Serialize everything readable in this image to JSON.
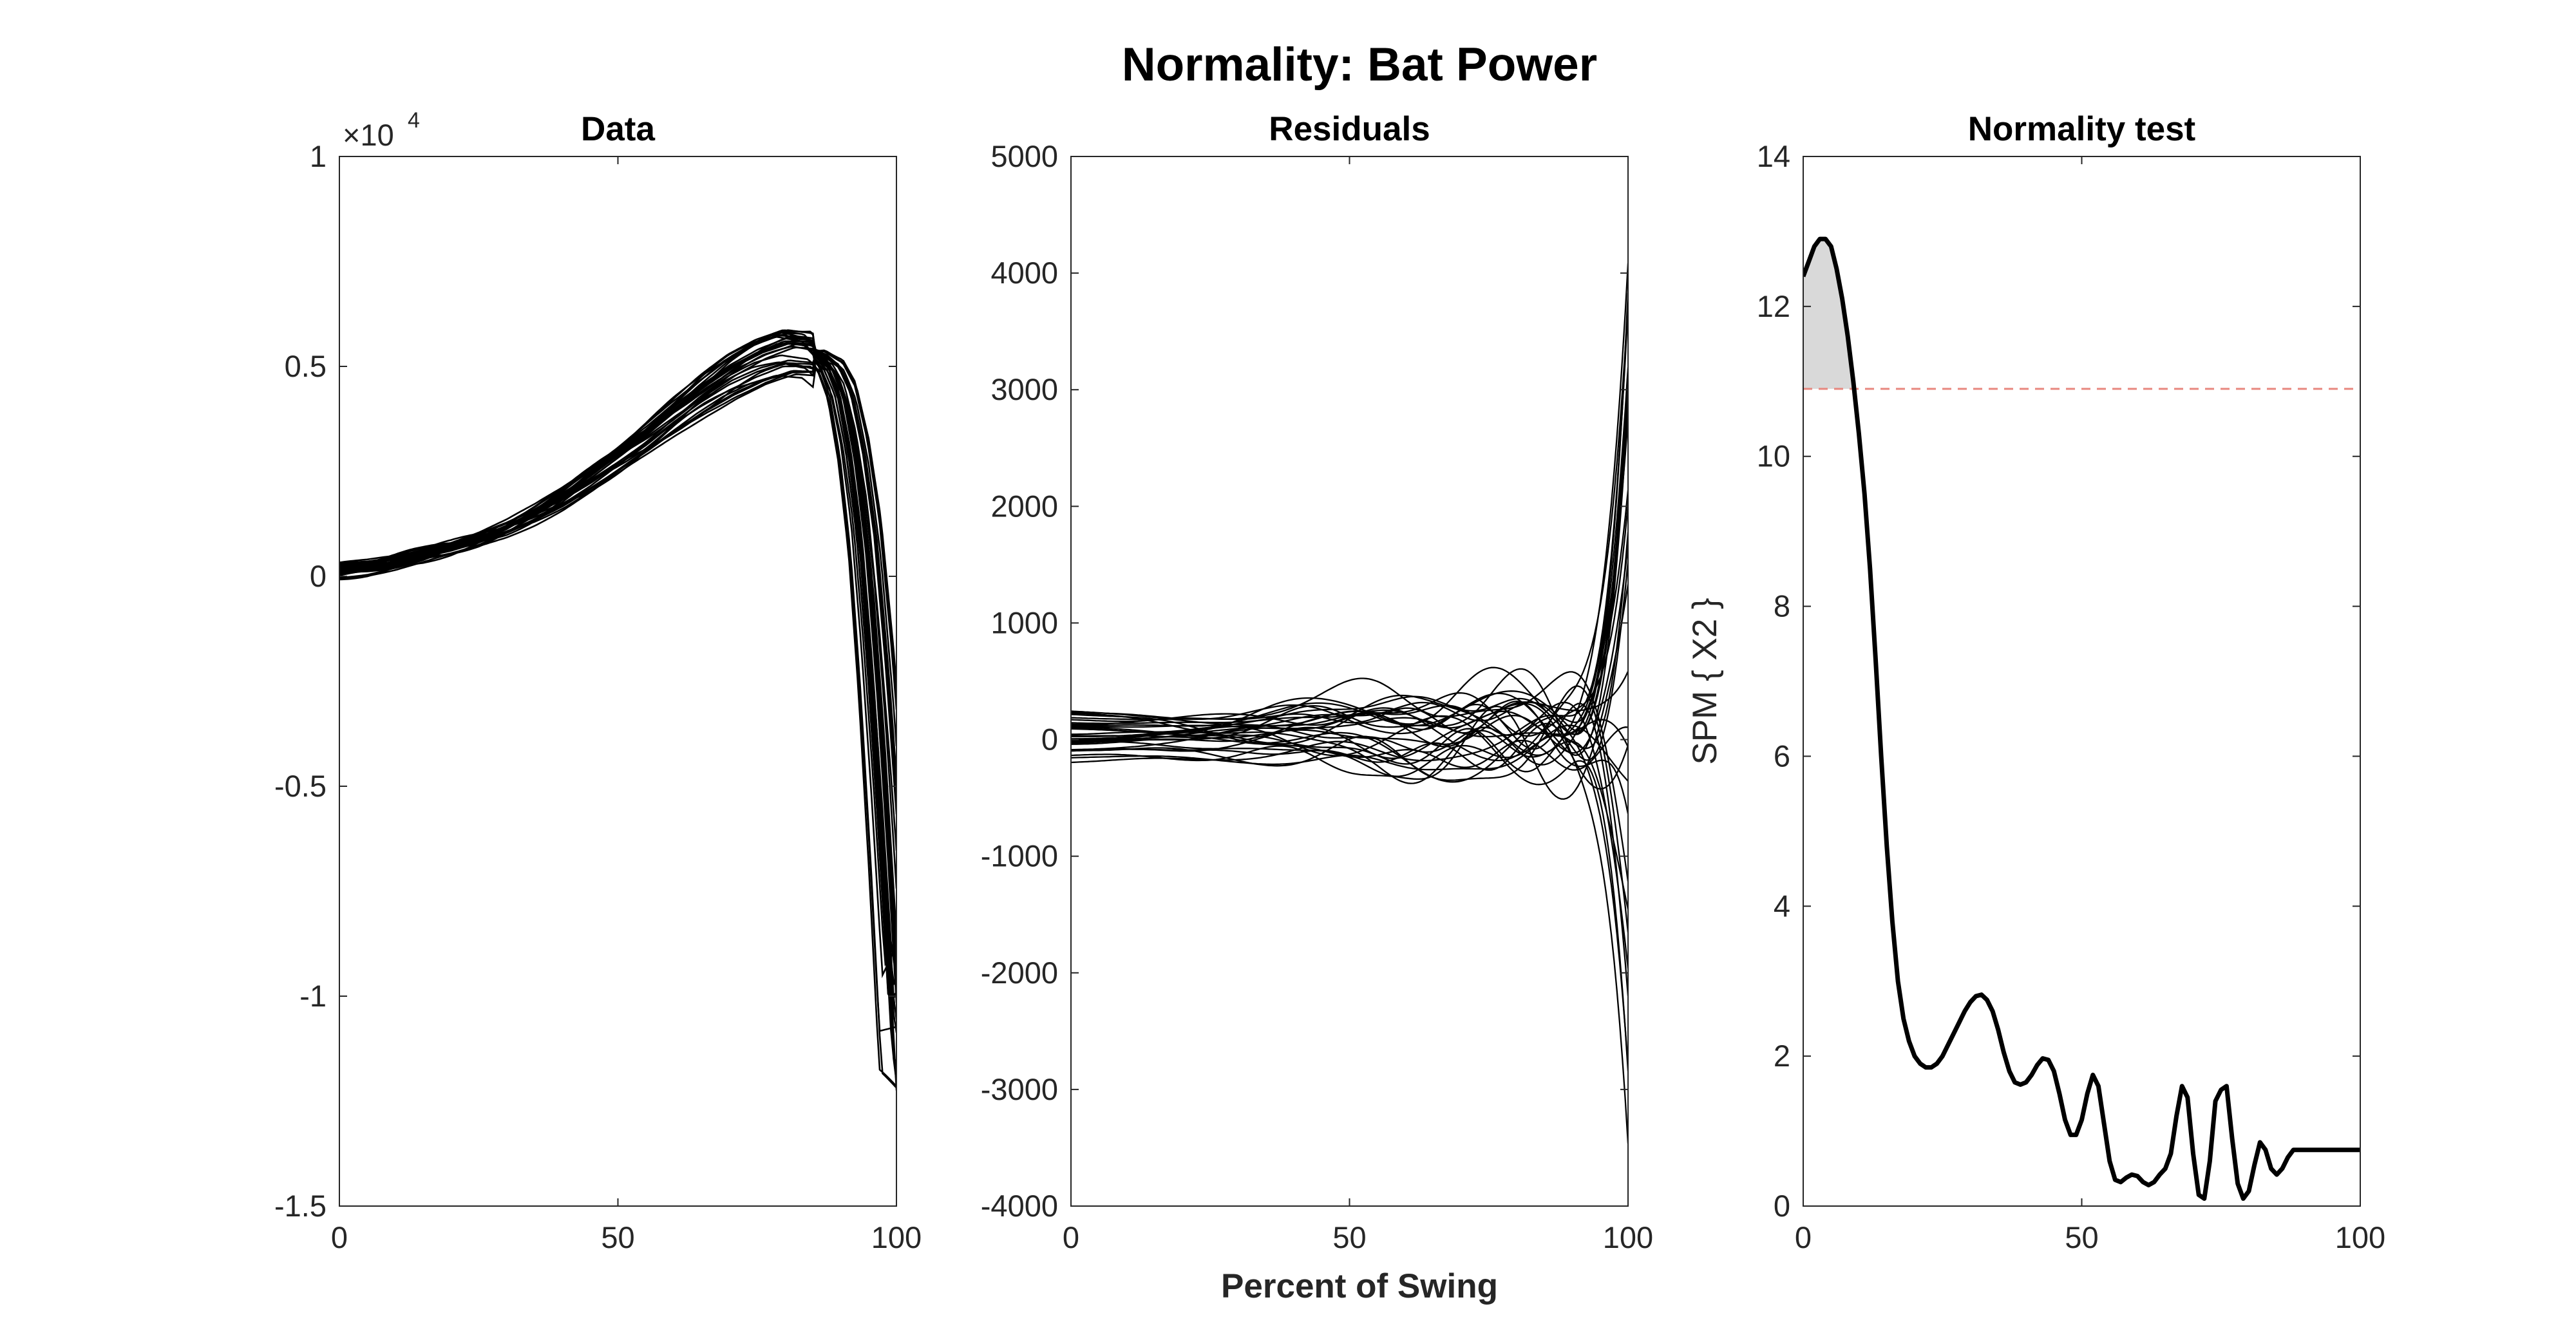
{
  "figure": {
    "title": "Normality: Bat Power",
    "xlabel": "Percent of Swing"
  },
  "chart_data": [
    {
      "type": "line",
      "title": "Data",
      "xlabel": "",
      "ylabel": "",
      "xlim": [
        0,
        100
      ],
      "ylim": [
        -15000,
        10000
      ],
      "xticks": [
        0,
        50,
        100
      ],
      "yticks": [
        -15000,
        -10000,
        -5000,
        0,
        5000,
        10000
      ],
      "ytick_labels": [
        "-1.5",
        "-1",
        "-0.5",
        "0",
        "0.5",
        "1"
      ],
      "y_exponent_label": "×10",
      "y_exponent_power": "4",
      "grid": false,
      "legend": "none",
      "series_count": 30,
      "mean_curve": {
        "x": [
          0,
          5,
          10,
          15,
          20,
          25,
          30,
          35,
          40,
          45,
          50,
          55,
          60,
          65,
          70,
          75,
          80,
          85,
          88,
          90,
          92,
          94,
          96,
          98,
          100
        ],
        "y": [
          150,
          220,
          330,
          480,
          660,
          880,
          1150,
          1480,
          1860,
          2300,
          2780,
          3280,
          3820,
          4330,
          4780,
          5120,
          5350,
          5300,
          4950,
          4300,
          2900,
          800,
          -2500,
          -6500,
          -11000
        ]
      },
      "color": "#000000"
    },
    {
      "type": "line",
      "title": "Residuals",
      "xlabel": "",
      "ylabel": "",
      "xlim": [
        0,
        100
      ],
      "ylim": [
        -4000,
        5000
      ],
      "xticks": [
        0,
        50,
        100
      ],
      "yticks": [
        -4000,
        -3000,
        -2000,
        -1000,
        0,
        1000,
        2000,
        3000,
        4000,
        5000
      ],
      "ytick_labels": [
        "-4000",
        "-3000",
        "-2000",
        "-1000",
        "0",
        "1000",
        "2000",
        "3000",
        "4000",
        "5000"
      ],
      "grid": false,
      "legend": "none",
      "series_count": 30,
      "residual_range_at_end": [
        -3600,
        4200
      ],
      "color": "#000000"
    },
    {
      "type": "line",
      "title": "Normality test",
      "xlabel": "",
      "ylabel": "SPM { X2 }",
      "xlim": [
        0,
        100
      ],
      "ylim": [
        0,
        14
      ],
      "xticks": [
        0,
        50,
        100
      ],
      "yticks": [
        0,
        2,
        4,
        6,
        8,
        10,
        12,
        14
      ],
      "ytick_labels": [
        "0",
        "2",
        "4",
        "6",
        "8",
        "10",
        "12",
        "14"
      ],
      "grid": false,
      "legend": "none",
      "threshold": 10.9,
      "threshold_color": "#e8877f",
      "suprathreshold_fill": "#d9d9d9",
      "series": [
        {
          "name": "",
          "x": [
            0,
            1,
            2,
            3,
            4,
            5,
            6,
            7,
            8,
            9,
            10,
            11,
            12,
            13,
            14,
            15,
            16,
            17,
            18,
            19,
            20,
            21,
            22,
            23,
            24,
            25,
            26,
            27,
            28,
            29,
            30,
            31,
            32,
            33,
            34,
            35,
            36,
            37,
            38,
            39,
            40,
            41,
            42,
            43,
            44,
            45,
            46,
            47,
            48,
            49,
            50,
            51,
            52,
            53,
            54,
            55,
            56,
            57,
            58,
            59,
            60,
            61,
            62,
            63,
            64,
            65,
            66,
            67,
            68,
            69,
            70,
            71,
            72,
            73,
            74,
            75,
            76,
            77,
            78,
            79,
            80,
            81,
            82,
            83,
            84,
            85,
            86,
            87,
            88,
            89,
            90,
            91,
            92,
            93,
            94,
            95,
            96,
            97,
            98,
            99,
            100
          ],
          "y": [
            12.4,
            12.6,
            12.8,
            12.9,
            12.9,
            12.8,
            12.5,
            12.1,
            11.6,
            11.0,
            10.3,
            9.5,
            8.5,
            7.3,
            6.0,
            4.8,
            3.8,
            3.0,
            2.5,
            2.2,
            2.0,
            1.9,
            1.85,
            1.85,
            1.9,
            2.0,
            2.15,
            2.3,
            2.45,
            2.6,
            2.72,
            2.8,
            2.82,
            2.75,
            2.6,
            2.35,
            2.05,
            1.8,
            1.65,
            1.62,
            1.65,
            1.75,
            1.88,
            1.97,
            1.95,
            1.8,
            1.5,
            1.15,
            0.95,
            0.95,
            1.15,
            1.5,
            1.75,
            1.6,
            1.1,
            0.6,
            0.35,
            0.32,
            0.38,
            0.42,
            0.4,
            0.32,
            0.28,
            0.32,
            0.42,
            0.5,
            0.7,
            1.2,
            1.6,
            1.45,
            0.7,
            0.15,
            0.1,
            0.6,
            1.4,
            1.55,
            1.6,
            0.9,
            0.3,
            0.1,
            0.2,
            0.55,
            0.85,
            0.75,
            0.5,
            0.42,
            0.5,
            0.65,
            0.75,
            0.75,
            0.75,
            0.75,
            0.75,
            0.75,
            0.75,
            0.75,
            0.75,
            0.75,
            0.75,
            0.75,
            0.75
          ]
        }
      ],
      "color": "#000000"
    }
  ]
}
